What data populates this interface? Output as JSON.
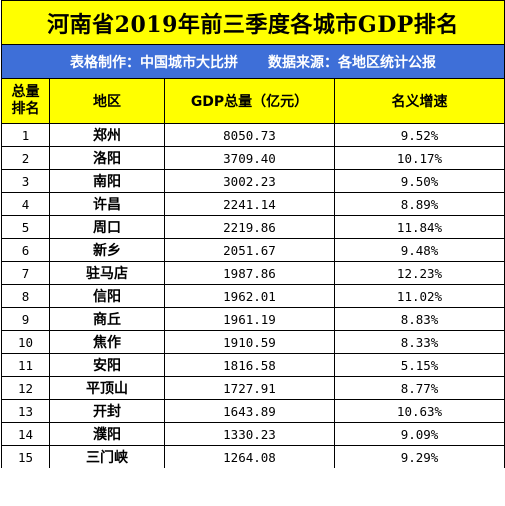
{
  "title": "河南省2019年前三季度各城市GDP排名",
  "subtitle": {
    "maker": "表格制作：中国城市大比拼",
    "source": "数据来源：各地区统计公报"
  },
  "headers": {
    "rank_line1": "总量",
    "rank_line2": "排名",
    "region": "地区",
    "gdp": "GDP总量（亿元）",
    "growth": "名义增速"
  },
  "rows": [
    {
      "rank": "1",
      "city": "郑州",
      "gdp": "8050.73",
      "growth": "9.52%"
    },
    {
      "rank": "2",
      "city": "洛阳",
      "gdp": "3709.40",
      "growth": "10.17%"
    },
    {
      "rank": "3",
      "city": "南阳",
      "gdp": "3002.23",
      "growth": "9.50%"
    },
    {
      "rank": "4",
      "city": "许昌",
      "gdp": "2241.14",
      "growth": "8.89%"
    },
    {
      "rank": "5",
      "city": "周口",
      "gdp": "2219.86",
      "growth": "11.84%"
    },
    {
      "rank": "6",
      "city": "新乡",
      "gdp": "2051.67",
      "growth": "9.48%"
    },
    {
      "rank": "7",
      "city": "驻马店",
      "gdp": "1987.86",
      "growth": "12.23%"
    },
    {
      "rank": "8",
      "city": "信阳",
      "gdp": "1962.01",
      "growth": "11.02%"
    },
    {
      "rank": "9",
      "city": "商丘",
      "gdp": "1961.19",
      "growth": "8.83%"
    },
    {
      "rank": "10",
      "city": "焦作",
      "gdp": "1910.59",
      "growth": "8.33%"
    },
    {
      "rank": "11",
      "city": "安阳",
      "gdp": "1816.58",
      "growth": "5.15%"
    },
    {
      "rank": "12",
      "city": "平顶山",
      "gdp": "1727.91",
      "growth": "8.77%"
    },
    {
      "rank": "13",
      "city": "开封",
      "gdp": "1643.89",
      "growth": "10.63%"
    },
    {
      "rank": "14",
      "city": "濮阳",
      "gdp": "1330.23",
      "growth": "9.09%"
    },
    {
      "rank": "15",
      "city": "三门峡",
      "gdp": "1264.08",
      "growth": "9.29%"
    }
  ]
}
